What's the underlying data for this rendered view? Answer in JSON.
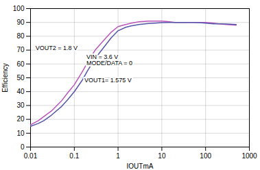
{
  "chart_data": {
    "type": "line",
    "xlabel": "IOUTmA",
    "ylabel": "Efficiency",
    "log": "x",
    "grid": true,
    "xlim": [
      0.01,
      1000
    ],
    "ylim": [
      0,
      100
    ],
    "xticks": [
      0.01,
      0.1,
      1,
      10,
      100,
      1000
    ],
    "yticks": [
      0,
      10,
      20,
      30,
      40,
      50,
      60,
      70,
      80,
      90,
      100
    ],
    "x": [
      0.01,
      0.015,
      0.02,
      0.03,
      0.05,
      0.07,
      0.1,
      0.15,
      0.2,
      0.3,
      0.5,
      0.7,
      1.0,
      1.5,
      2.0,
      3.0,
      5.0,
      7.0,
      10.0,
      15.0,
      20.0,
      30.0,
      50.0,
      70.0,
      100.0,
      150.0,
      200.0,
      300.0,
      500.0
    ],
    "series": [
      {
        "color": "#bb55bb",
        "values": [
          16,
          19,
          22,
          26,
          33,
          39,
          45,
          54,
          61,
          70,
          78,
          83,
          87,
          88.5,
          89.5,
          90.5,
          91,
          91,
          91,
          90.5,
          90,
          90,
          90,
          90,
          90,
          89.5,
          89,
          88.5,
          88
        ]
      },
      {
        "color": "#5555aa",
        "values": [
          15,
          17,
          19,
          23,
          29,
          34,
          40,
          48,
          55,
          64,
          73,
          79,
          84,
          86.5,
          87.5,
          88.5,
          89.2,
          89.5,
          89.8,
          90,
          90,
          90,
          90,
          89.8,
          89.5,
          89,
          89,
          88.8,
          88.5
        ]
      }
    ],
    "annotations": [
      {
        "text": "VOUT2 = 1.8 V",
        "x": 0.013,
        "y": 70
      },
      {
        "text": "VIN = 3.6 V\nMODE/DATA = 0",
        "x": 0.19,
        "y": 59
      },
      {
        "text": "VOUT1= 1.575 V",
        "x": 0.17,
        "y": 47
      }
    ]
  }
}
